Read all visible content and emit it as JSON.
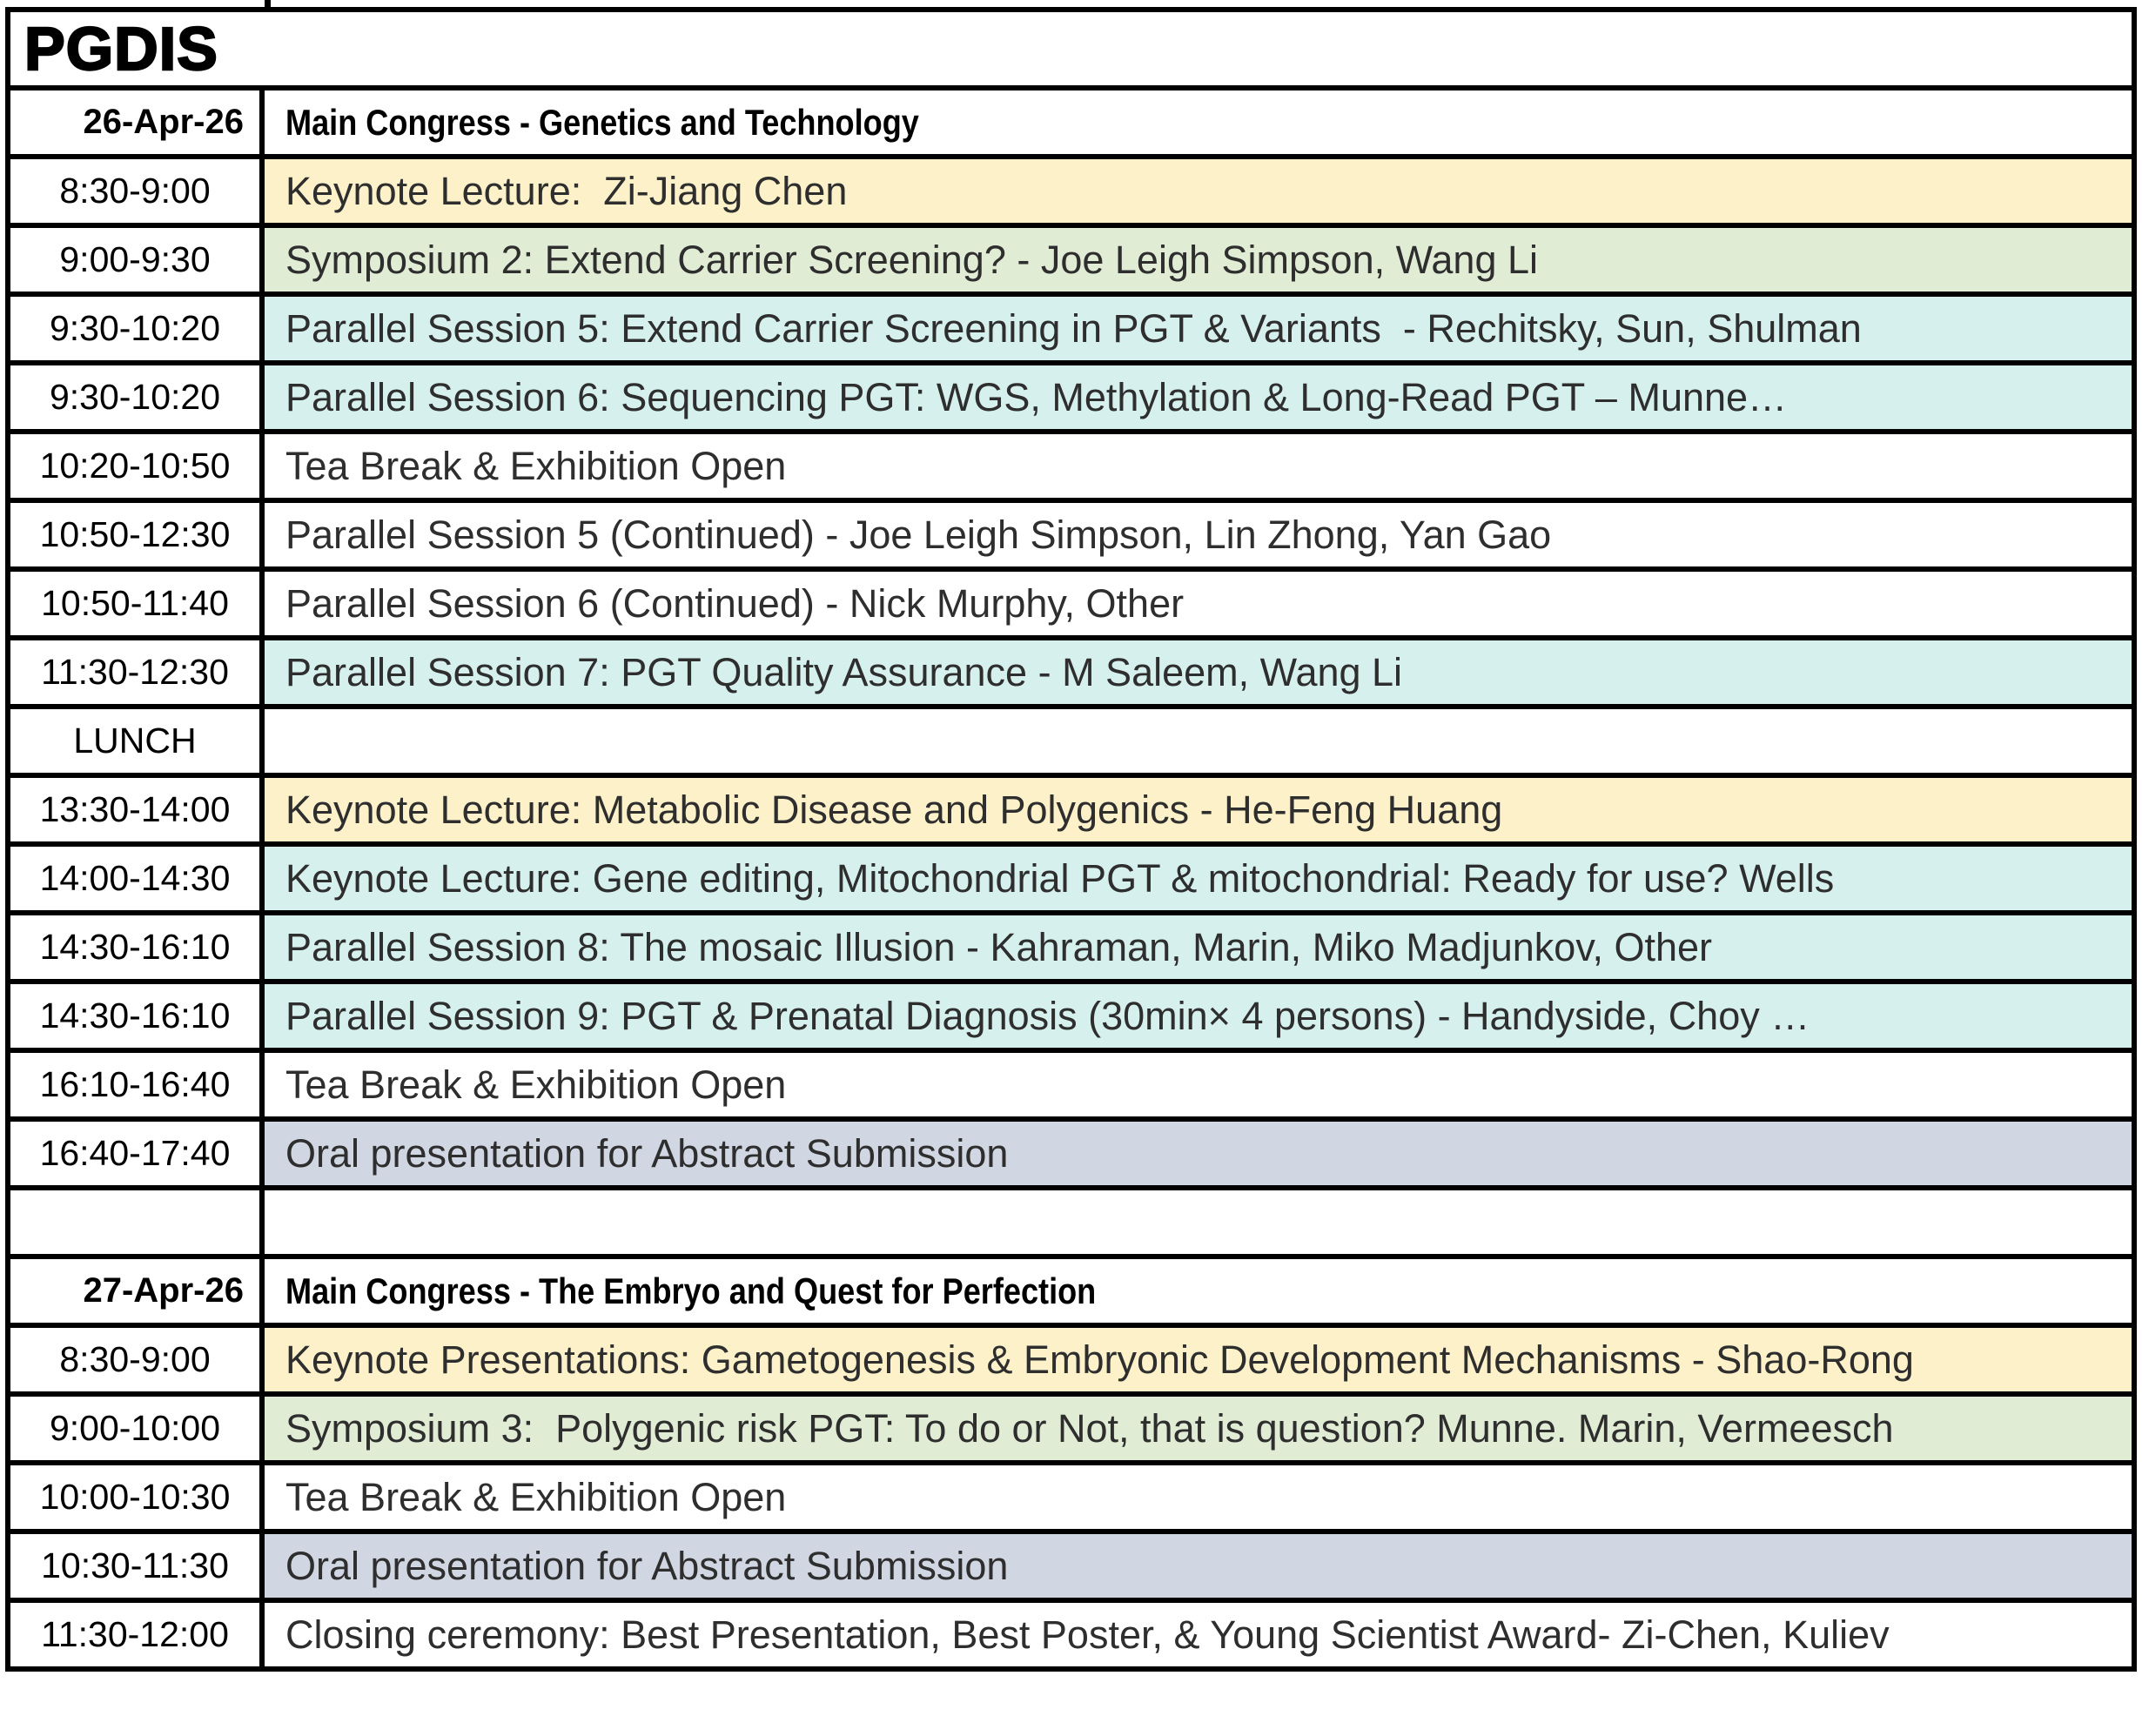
{
  "title": "PGDIS",
  "colors": {
    "keynote": "#FCF1C9",
    "symposium": "#E1ECD5",
    "parallel": "#D6F0ED",
    "oral": "#D1D7E2",
    "plain": "#FFFFFF",
    "border": "#000000"
  },
  "rows": [
    {
      "time": "26-Apr-26",
      "session": "Main Congress - Genetics and Technology",
      "category": "day-header"
    },
    {
      "time": "8:30-9:00",
      "session": "Keynote Lecture:  Zi-Jiang Chen",
      "category": "keynote"
    },
    {
      "time": "9:00-9:30",
      "session": "Symposium 2: Extend Carrier Screening? - Joe Leigh Simpson, Wang Li",
      "category": "symposium"
    },
    {
      "time": "9:30-10:20",
      "session": "Parallel Session 5: Extend Carrier Screening in PGT & Variants  - Rechitsky, Sun, Shulman",
      "category": "parallel"
    },
    {
      "time": "9:30-10:20",
      "session": "Parallel Session 6: Sequencing PGT: WGS, Methylation & Long-Read PGT – Munne…",
      "category": "parallel"
    },
    {
      "time": "10:20-10:50",
      "session": "Tea Break & Exhibition Open",
      "category": "plain"
    },
    {
      "time": "10:50-12:30",
      "session": "Parallel Session 5 (Continued) - Joe Leigh Simpson, Lin Zhong, Yan Gao",
      "category": "plain"
    },
    {
      "time": "10:50-11:40",
      "session": "Parallel Session 6 (Continued) - Nick Murphy, Other",
      "category": "plain"
    },
    {
      "time": "11:30-12:30",
      "session": "Parallel Session 7: PGT Quality Assurance - M Saleem, Wang Li",
      "category": "parallel"
    },
    {
      "time": "LUNCH",
      "session": "",
      "category": "plain"
    },
    {
      "time": "13:30-14:00",
      "session": "Keynote Lecture: Metabolic Disease and Polygenics - He-Feng Huang",
      "category": "keynote"
    },
    {
      "time": "14:00-14:30",
      "session": "Keynote Lecture: Gene editing, Mitochondrial PGT & mitochondrial: Ready for use? Wells",
      "category": "parallel"
    },
    {
      "time": "14:30-16:10",
      "session": "Parallel Session 8: The mosaic Illusion - Kahraman, Marin, Miko Madjunkov, Other",
      "category": "parallel"
    },
    {
      "time": "14:30-16:10",
      "session": "Parallel Session 9: PGT & Prenatal Diagnosis (30min× 4 persons) - Handyside, Choy …",
      "category": "parallel"
    },
    {
      "time": "16:10-16:40",
      "session": "Tea Break & Exhibition Open",
      "category": "plain"
    },
    {
      "time": "16:40-17:40",
      "session": "Oral presentation for Abstract Submission",
      "category": "oral"
    },
    {
      "time": "",
      "session": "",
      "category": "plain"
    },
    {
      "time": "27-Apr-26",
      "session": "Main Congress - The Embryo and Quest for Perfection",
      "category": "day-header"
    },
    {
      "time": "8:30-9:00",
      "session": "Keynote Presentations: Gametogenesis & Embryonic Development Mechanisms - Shao-Rong",
      "category": "keynote"
    },
    {
      "time": "9:00-10:00",
      "session": "Symposium 3:  Polygenic risk PGT: To do or Not, that is question? Munne. Marin, Vermeesch",
      "category": "symposium"
    },
    {
      "time": "10:00-10:30",
      "session": "Tea Break & Exhibition Open",
      "category": "plain"
    },
    {
      "time": "10:30-11:30",
      "session": "Oral presentation for Abstract Submission",
      "category": "oral"
    },
    {
      "time": "11:30-12:00",
      "session": "Closing ceremony: Best Presentation, Best Poster, & Young Scientist Award- Zi-Chen, Kuliev",
      "category": "plain"
    }
  ]
}
